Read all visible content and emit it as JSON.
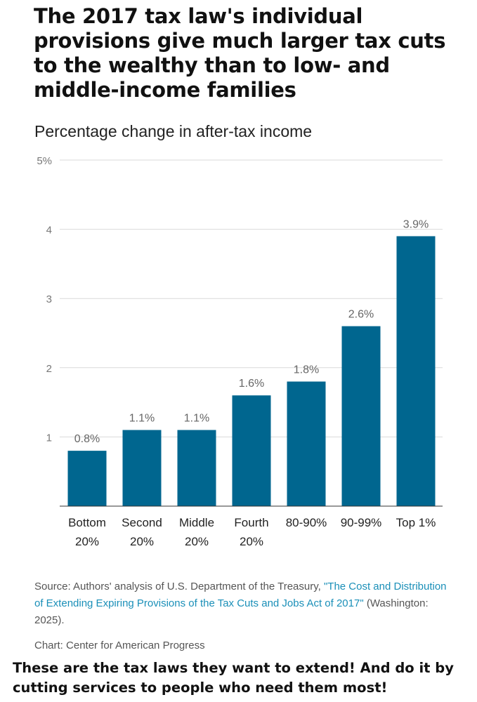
{
  "header": {
    "title": "The 2017 tax law's individual provisions give much larger tax cuts to the wealthy than to low- and middle-income families",
    "subtitle": "Percentage change in after-tax income"
  },
  "chart_data": {
    "type": "bar",
    "title": "The 2017 tax law's individual provisions give much larger tax cuts to the wealthy than to low- and middle-income families",
    "subtitle": "Percentage change in after-tax income",
    "categories": [
      [
        "Bottom",
        "20%"
      ],
      [
        "Second",
        "20%"
      ],
      [
        "Middle",
        "20%"
      ],
      [
        "Fourth",
        "20%"
      ],
      [
        "80-90%"
      ],
      [
        "90-99%"
      ],
      [
        "Top 1%"
      ]
    ],
    "values": [
      0.8,
      1.1,
      1.1,
      1.6,
      1.8,
      2.6,
      3.9
    ],
    "data_labels": [
      "0.8%",
      "1.1%",
      "1.1%",
      "1.6%",
      "1.8%",
      "2.6%",
      "3.9%"
    ],
    "y_ticks": [
      1,
      2,
      3,
      4,
      5
    ],
    "y_tick_labels": [
      "1",
      "2",
      "3",
      "4",
      "5%"
    ],
    "ylim": [
      0,
      5
    ],
    "grid": true,
    "xlabel": "",
    "ylabel": "",
    "bar_color": "#00668f"
  },
  "source": {
    "prefix": "Source: Authors' analysis of U.S. Department of the Treasury, ",
    "link_text": "\"The Cost and Distribution of Extending Expiring Provisions of the Tax Cuts and Jobs Act of 2017\"",
    "suffix": " (Washington: 2025)."
  },
  "credit": "Chart: Center for American Progress",
  "caption": "These are the tax laws they want to extend! And do it by cutting services to people who need them most!"
}
